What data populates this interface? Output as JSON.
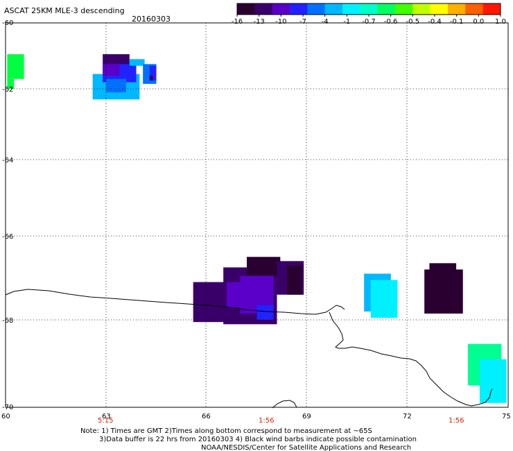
{
  "header": {
    "title": "ASCAT 25KM MLE-3 descending",
    "date": "20160303"
  },
  "colorbar": {
    "colors": [
      "#2a0030",
      "#3a006a",
      "#5a00c8",
      "#2222ff",
      "#0070ff",
      "#00b8ff",
      "#00f0ff",
      "#00ffc8",
      "#00ff60",
      "#40ff00",
      "#c0ff00",
      "#ffff00",
      "#ffb000",
      "#ff6000",
      "#ff1800"
    ],
    "labels": [
      "-16",
      "-13",
      "-10",
      "-7",
      "-4",
      "-1",
      "-0.7",
      "-0.6",
      "-0.5",
      "-0.4",
      "-0.1",
      "0.0",
      "1.0"
    ]
  },
  "axes": {
    "lat_labels": [
      "-60",
      "-62",
      "-64",
      "-66",
      "-68",
      "-70"
    ],
    "lon_labels": [
      "60",
      "63",
      "66",
      "69",
      "72",
      "75"
    ]
  },
  "times": [
    "5:15",
    "1:56",
    "1:56"
  ],
  "notes": {
    "line1": "Note: 1) Times are GMT 2)Times along bottom correspond to measurement at ~65S",
    "line2": "3)Data buffer is 22 hrs from 20160303 4) Black wind barbs indicate possible contamination",
    "line3": "NOAA/NESDIS/Center for Satellite Applications and Research"
  },
  "cells": [
    {
      "lon": 60.05,
      "lat": -60.95,
      "w": 0.5,
      "h": 0.75,
      "color": "#00ff40"
    },
    {
      "lon": 60.05,
      "lat": -61.7,
      "w": 0.2,
      "h": 0.3,
      "color": "#00ff40"
    },
    {
      "lon": 62.9,
      "lat": -60.95,
      "w": 0.8,
      "h": 0.35,
      "color": "#3a006a"
    },
    {
      "lon": 62.6,
      "lat": -61.55,
      "w": 1.4,
      "h": 0.75,
      "color": "#00b8ff"
    },
    {
      "lon": 62.9,
      "lat": -61.25,
      "w": 1.0,
      "h": 0.55,
      "color": "#2222ff"
    },
    {
      "lon": 62.9,
      "lat": -61.25,
      "w": 0.5,
      "h": 0.35,
      "color": "#5a00c8"
    },
    {
      "lon": 63.7,
      "lat": -61.1,
      "w": 0.45,
      "h": 0.2,
      "color": "#00b8ff"
    },
    {
      "lon": 64.1,
      "lat": -61.25,
      "w": 0.4,
      "h": 0.6,
      "color": "#0070ff"
    },
    {
      "lon": 64.3,
      "lat": -61.3,
      "w": 0.2,
      "h": 0.45,
      "color": "#2222ff"
    },
    {
      "lon": 63.0,
      "lat": -61.7,
      "w": 0.6,
      "h": 0.4,
      "color": "#0070ff"
    },
    {
      "lon": 64.3,
      "lat": -61.6,
      "w": 0.1,
      "h": 0.15,
      "color": "#3a006a"
    },
    {
      "lon": 65.6,
      "lat": -67.1,
      "w": 1.3,
      "h": 0.95,
      "color": "#3a006a"
    },
    {
      "lon": 66.5,
      "lat": -66.75,
      "w": 1.6,
      "h": 1.35,
      "color": "#3a006a"
    },
    {
      "lon": 67.2,
      "lat": -66.5,
      "w": 1.0,
      "h": 0.45,
      "color": "#2a0030"
    },
    {
      "lon": 67.0,
      "lat": -66.95,
      "w": 1.0,
      "h": 0.9,
      "color": "#5a00c8"
    },
    {
      "lon": 66.6,
      "lat": -67.1,
      "w": 0.7,
      "h": 0.6,
      "color": "#5a00c8"
    },
    {
      "lon": 67.5,
      "lat": -67.65,
      "w": 0.5,
      "h": 0.35,
      "color": "#2222ff"
    },
    {
      "lon": 68.1,
      "lat": -66.6,
      "w": 0.8,
      "h": 0.8,
      "color": "#3a006a"
    },
    {
      "lon": 68.4,
      "lat": -66.7,
      "w": 0.45,
      "h": 0.7,
      "color": "#2a0030"
    },
    {
      "lon": 70.7,
      "lat": -66.9,
      "w": 0.8,
      "h": 0.9,
      "color": "#00b8ff"
    },
    {
      "lon": 70.9,
      "lat": -67.05,
      "w": 0.8,
      "h": 0.9,
      "color": "#00f0ff"
    },
    {
      "lon": 72.5,
      "lat": -66.8,
      "w": 1.15,
      "h": 1.05,
      "color": "#2a0030"
    },
    {
      "lon": 72.65,
      "lat": -66.65,
      "w": 0.8,
      "h": 0.3,
      "color": "#2a0030"
    },
    {
      "lon": 73.8,
      "lat": -68.55,
      "w": 1.0,
      "h": 0.95,
      "color": "#00ff90"
    },
    {
      "lon": 74.15,
      "lat": -68.9,
      "w": 0.8,
      "h": 1.0,
      "color": "#00f0ff"
    }
  ]
}
